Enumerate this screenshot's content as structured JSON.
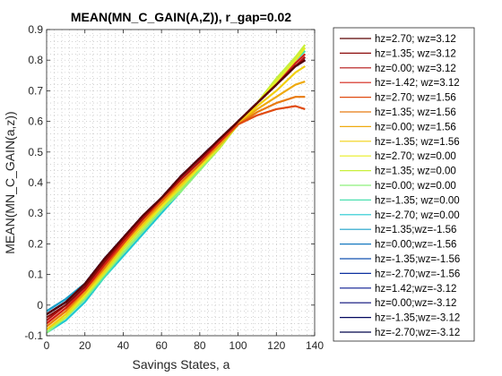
{
  "chart_data": {
    "type": "line",
    "title": "MEAN(MN_C_GAIN(A,Z)), r_gap=0.02",
    "xlabel": "Savings States, a",
    "ylabel": "MEAN(MN_C_GAIN(a,z))",
    "xlim": [
      0,
      140
    ],
    "ylim": [
      -0.1,
      0.9
    ],
    "xticks": [
      "0",
      "20",
      "40",
      "60",
      "80",
      "100",
      "120",
      "140"
    ],
    "yticks": [
      "-0.1",
      "0",
      "0.1",
      "0.2",
      "0.3",
      "0.4",
      "0.5",
      "0.6",
      "0.7",
      "0.8",
      "0.9"
    ],
    "grid": "minor-dotted",
    "legend_position": "outside-right",
    "x": [
      0,
      10,
      20,
      30,
      40,
      50,
      60,
      70,
      80,
      90,
      100,
      110,
      120,
      130,
      135
    ],
    "series": [
      {
        "name": "hz=2.70; wz=3.12",
        "color": "#5a0000",
        "values": [
          -0.03,
          0.01,
          0.07,
          0.15,
          0.22,
          0.29,
          0.35,
          0.42,
          0.48,
          0.54,
          0.6,
          0.66,
          0.72,
          0.78,
          0.8
        ]
      },
      {
        "name": "hz=1.35; wz=3.12",
        "color": "#8b0a0a",
        "values": [
          -0.04,
          0.0,
          0.06,
          0.14,
          0.22,
          0.29,
          0.35,
          0.42,
          0.48,
          0.54,
          0.6,
          0.66,
          0.72,
          0.78,
          0.8
        ]
      },
      {
        "name": "hz=0.00; wz=3.12",
        "color": "#b31010",
        "values": [
          -0.05,
          0.0,
          0.06,
          0.14,
          0.21,
          0.28,
          0.35,
          0.41,
          0.47,
          0.54,
          0.6,
          0.66,
          0.72,
          0.78,
          0.81
        ]
      },
      {
        "name": "hz=-1.42; wz=3.12",
        "color": "#d42015",
        "values": [
          -0.06,
          -0.01,
          0.05,
          0.13,
          0.21,
          0.28,
          0.35,
          0.41,
          0.47,
          0.53,
          0.6,
          0.66,
          0.72,
          0.79,
          0.82
        ]
      },
      {
        "name": "hz=2.70; wz=1.56",
        "color": "#e04a10",
        "values": [
          -0.06,
          -0.01,
          0.05,
          0.13,
          0.2,
          0.28,
          0.34,
          0.41,
          0.47,
          0.53,
          0.59,
          0.62,
          0.64,
          0.65,
          0.64
        ]
      },
      {
        "name": "hz=1.35; wz=1.56",
        "color": "#e87a10",
        "values": [
          -0.07,
          -0.02,
          0.05,
          0.12,
          0.2,
          0.27,
          0.34,
          0.4,
          0.46,
          0.53,
          0.59,
          0.63,
          0.66,
          0.68,
          0.68
        ]
      },
      {
        "name": "hz=0.00; wz=1.56",
        "color": "#efaa10",
        "values": [
          -0.07,
          -0.02,
          0.04,
          0.12,
          0.2,
          0.27,
          0.33,
          0.4,
          0.46,
          0.52,
          0.59,
          0.64,
          0.68,
          0.72,
          0.73
        ]
      },
      {
        "name": "hz=-1.35; wz=1.56",
        "color": "#f2d010",
        "values": [
          -0.08,
          -0.03,
          0.04,
          0.11,
          0.19,
          0.26,
          0.33,
          0.39,
          0.46,
          0.52,
          0.59,
          0.65,
          0.7,
          0.76,
          0.78
        ]
      },
      {
        "name": "hz=2.70; wz=0.00",
        "color": "#e8ee20",
        "values": [
          -0.08,
          -0.03,
          0.03,
          0.11,
          0.19,
          0.26,
          0.32,
          0.39,
          0.45,
          0.52,
          0.59,
          0.66,
          0.73,
          0.8,
          0.84
        ]
      },
      {
        "name": "hz=1.35; wz=0.00",
        "color": "#c8f03a",
        "values": [
          -0.08,
          -0.04,
          0.03,
          0.1,
          0.18,
          0.25,
          0.32,
          0.38,
          0.45,
          0.51,
          0.59,
          0.66,
          0.74,
          0.81,
          0.85
        ]
      },
      {
        "name": "hz=0.00; wz=0.00",
        "color": "#8ef07a",
        "values": [
          -0.09,
          -0.04,
          0.02,
          0.1,
          0.17,
          0.24,
          0.31,
          0.37,
          0.44,
          0.51,
          0.59,
          0.66,
          0.74,
          0.81,
          0.84
        ]
      },
      {
        "name": "hz=-1.35; wz=0.00",
        "color": "#4ae0b0",
        "values": [
          -0.09,
          -0.04,
          0.02,
          0.09,
          0.17,
          0.24,
          0.31,
          0.38,
          0.45,
          0.52,
          0.59,
          0.66,
          0.73,
          0.8,
          0.83
        ]
      },
      {
        "name": "hz=-2.70; wz=0.00",
        "color": "#22c8d0",
        "values": [
          -0.09,
          -0.05,
          0.01,
          0.09,
          0.16,
          0.23,
          0.3,
          0.37,
          0.45,
          0.52,
          0.59,
          0.66,
          0.73,
          0.8,
          0.83
        ]
      },
      {
        "name": "hz=1.35;wz=-1.56",
        "color": "#1aa0c8",
        "values": [
          -0.02,
          0.02,
          0.07,
          0.14,
          0.21,
          0.28,
          0.35,
          0.41,
          0.47,
          0.54,
          0.6,
          0.66,
          0.72,
          0.78,
          0.81
        ]
      },
      {
        "name": "hz=0.00;wz=-1.56",
        "color": "#1478c0",
        "values": [
          -0.02,
          0.02,
          0.07,
          0.14,
          0.21,
          0.28,
          0.35,
          0.41,
          0.48,
          0.54,
          0.6,
          0.66,
          0.72,
          0.78,
          0.8
        ]
      },
      {
        "name": "hz=-1.35;wz=-1.56",
        "color": "#1050b0",
        "values": [
          -0.03,
          0.01,
          0.07,
          0.14,
          0.21,
          0.28,
          0.35,
          0.42,
          0.48,
          0.54,
          0.6,
          0.66,
          0.72,
          0.78,
          0.8
        ]
      },
      {
        "name": "hz=-2.70;wz=-1.56",
        "color": "#0c30a0",
        "values": [
          -0.03,
          0.01,
          0.07,
          0.15,
          0.22,
          0.29,
          0.35,
          0.42,
          0.48,
          0.54,
          0.6,
          0.66,
          0.72,
          0.78,
          0.8
        ]
      },
      {
        "name": "hz=1.42;wz=-3.12",
        "color": "#081890",
        "values": [
          -0.03,
          0.01,
          0.07,
          0.15,
          0.22,
          0.29,
          0.35,
          0.42,
          0.48,
          0.54,
          0.6,
          0.66,
          0.72,
          0.78,
          0.8
        ]
      },
      {
        "name": "hz=0.00;wz=-3.12",
        "color": "#060c78",
        "values": [
          -0.03,
          0.01,
          0.07,
          0.15,
          0.22,
          0.29,
          0.35,
          0.42,
          0.48,
          0.54,
          0.6,
          0.66,
          0.72,
          0.78,
          0.8
        ]
      },
      {
        "name": "hz=-1.35;wz=-3.12",
        "color": "#040860",
        "values": [
          -0.03,
          0.01,
          0.07,
          0.15,
          0.22,
          0.29,
          0.35,
          0.42,
          0.48,
          0.54,
          0.6,
          0.66,
          0.72,
          0.78,
          0.8
        ]
      },
      {
        "name": "hz=-2.70;wz=-3.12",
        "color": "#02044a",
        "values": [
          -0.03,
          0.01,
          0.07,
          0.15,
          0.22,
          0.29,
          0.35,
          0.42,
          0.48,
          0.54,
          0.6,
          0.66,
          0.72,
          0.78,
          0.8
        ]
      }
    ]
  }
}
